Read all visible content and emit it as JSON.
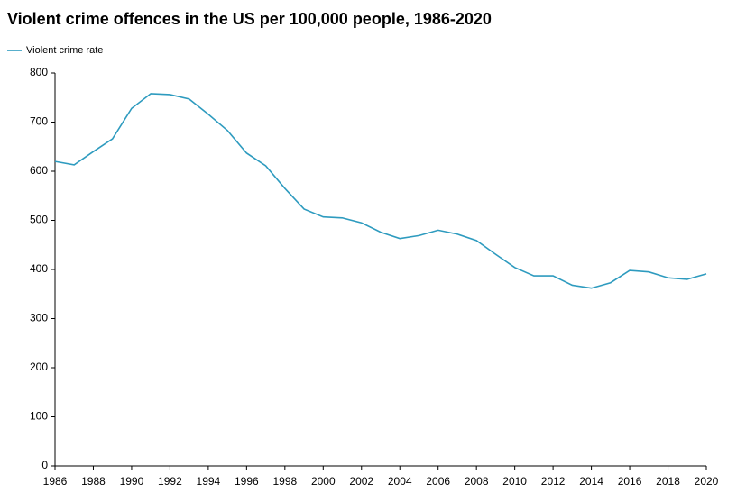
{
  "chart_data": {
    "type": "line",
    "title": "Violent crime offences in the US per 100,000 people, 1986-2020",
    "x": [
      1986,
      1987,
      1988,
      1989,
      1990,
      1991,
      1992,
      1993,
      1994,
      1995,
      1996,
      1997,
      1998,
      1999,
      2000,
      2001,
      2002,
      2003,
      2004,
      2005,
      2006,
      2007,
      2008,
      2009,
      2010,
      2011,
      2012,
      2013,
      2014,
      2015,
      2016,
      2017,
      2018,
      2019,
      2020
    ],
    "series": [
      {
        "name": "Violent crime rate",
        "color": "#2e9bbf",
        "values": [
          620,
          613,
          640,
          666,
          728,
          758,
          756,
          747,
          716,
          683,
          637,
          611,
          565,
          523,
          507,
          505,
          495,
          476,
          463,
          469,
          480,
          472,
          459,
          431,
          404,
          387,
          387,
          368,
          362,
          373,
          398,
          395,
          383,
          380,
          391
        ]
      }
    ],
    "xlim": [
      1986,
      2020
    ],
    "xticks": [
      1986,
      1988,
      1990,
      1992,
      1994,
      1996,
      1998,
      2000,
      2002,
      2004,
      2006,
      2008,
      2010,
      2012,
      2014,
      2016,
      2018,
      2020
    ],
    "ylim": [
      0,
      800
    ],
    "yticks": [
      0,
      100,
      200,
      300,
      400,
      500,
      600,
      700,
      800
    ],
    "grid": false,
    "legend": "top-left"
  }
}
